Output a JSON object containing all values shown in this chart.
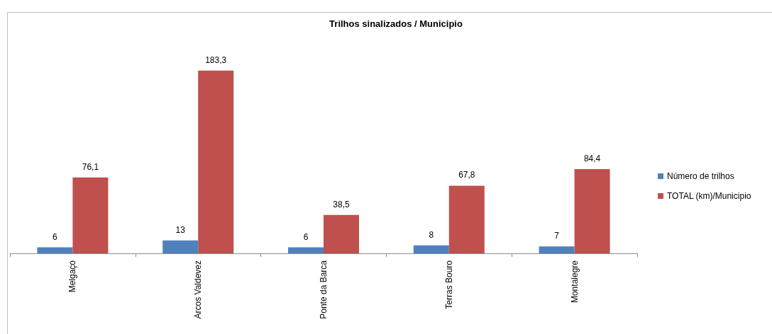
{
  "chart_data": {
    "type": "bar",
    "title": "Trilhos sinalizados / Municipio",
    "categories": [
      "Melgaço",
      "Arcos Valdevez",
      "Ponte da Barca",
      "Terras Bouro",
      "Montalegre"
    ],
    "series": [
      {
        "name": "Número de trilhos",
        "color": "#4f81bd",
        "values": [
          6,
          13,
          6,
          8,
          7
        ],
        "value_labels": [
          "6",
          "13",
          "6",
          "8",
          "7"
        ]
      },
      {
        "name": "TOTAL (km)/Municipio",
        "color": "#c0504d",
        "values": [
          76.1,
          183.3,
          38.5,
          67.8,
          84.4
        ],
        "value_labels": [
          "76,1",
          "183,3",
          "38,5",
          "67,8",
          "84,4"
        ]
      }
    ],
    "legend": "right",
    "tick_labels": "x"
  }
}
